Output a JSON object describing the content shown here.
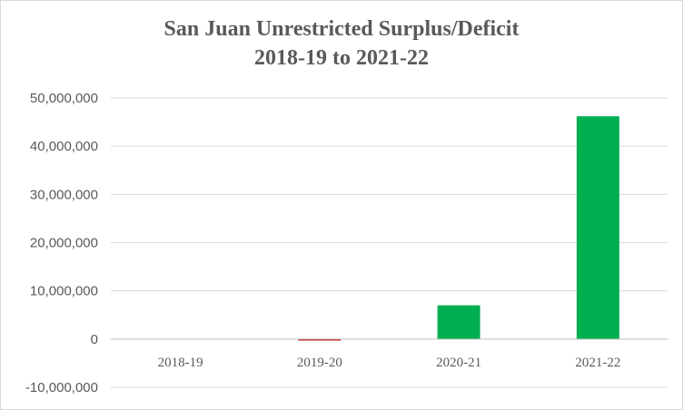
{
  "chart_data": {
    "type": "bar",
    "title_line1": "San Juan Unrestricted Surplus/Deficit",
    "title_line2": "2018-19 to 2021-22",
    "categories": [
      "2018-19",
      "2019-20",
      "2020-21",
      "2021-22"
    ],
    "values": [
      0,
      -300000,
      7000000,
      46200000
    ],
    "bar_colors": [
      "#00b050",
      "#c00000",
      "#00b050",
      "#00b050"
    ],
    "ylim": [
      -10000000,
      50000000
    ],
    "yticks": [
      -10000000,
      0,
      10000000,
      20000000,
      30000000,
      40000000,
      50000000
    ],
    "ytick_labels": [
      "-10,000,000",
      "0",
      "10,000,000",
      "20,000,000",
      "30,000,000",
      "40,000,000",
      "50,000,000"
    ],
    "grid": true,
    "gridline_color": "#d9d9d9",
    "axis_color": "#bfbfbf"
  }
}
